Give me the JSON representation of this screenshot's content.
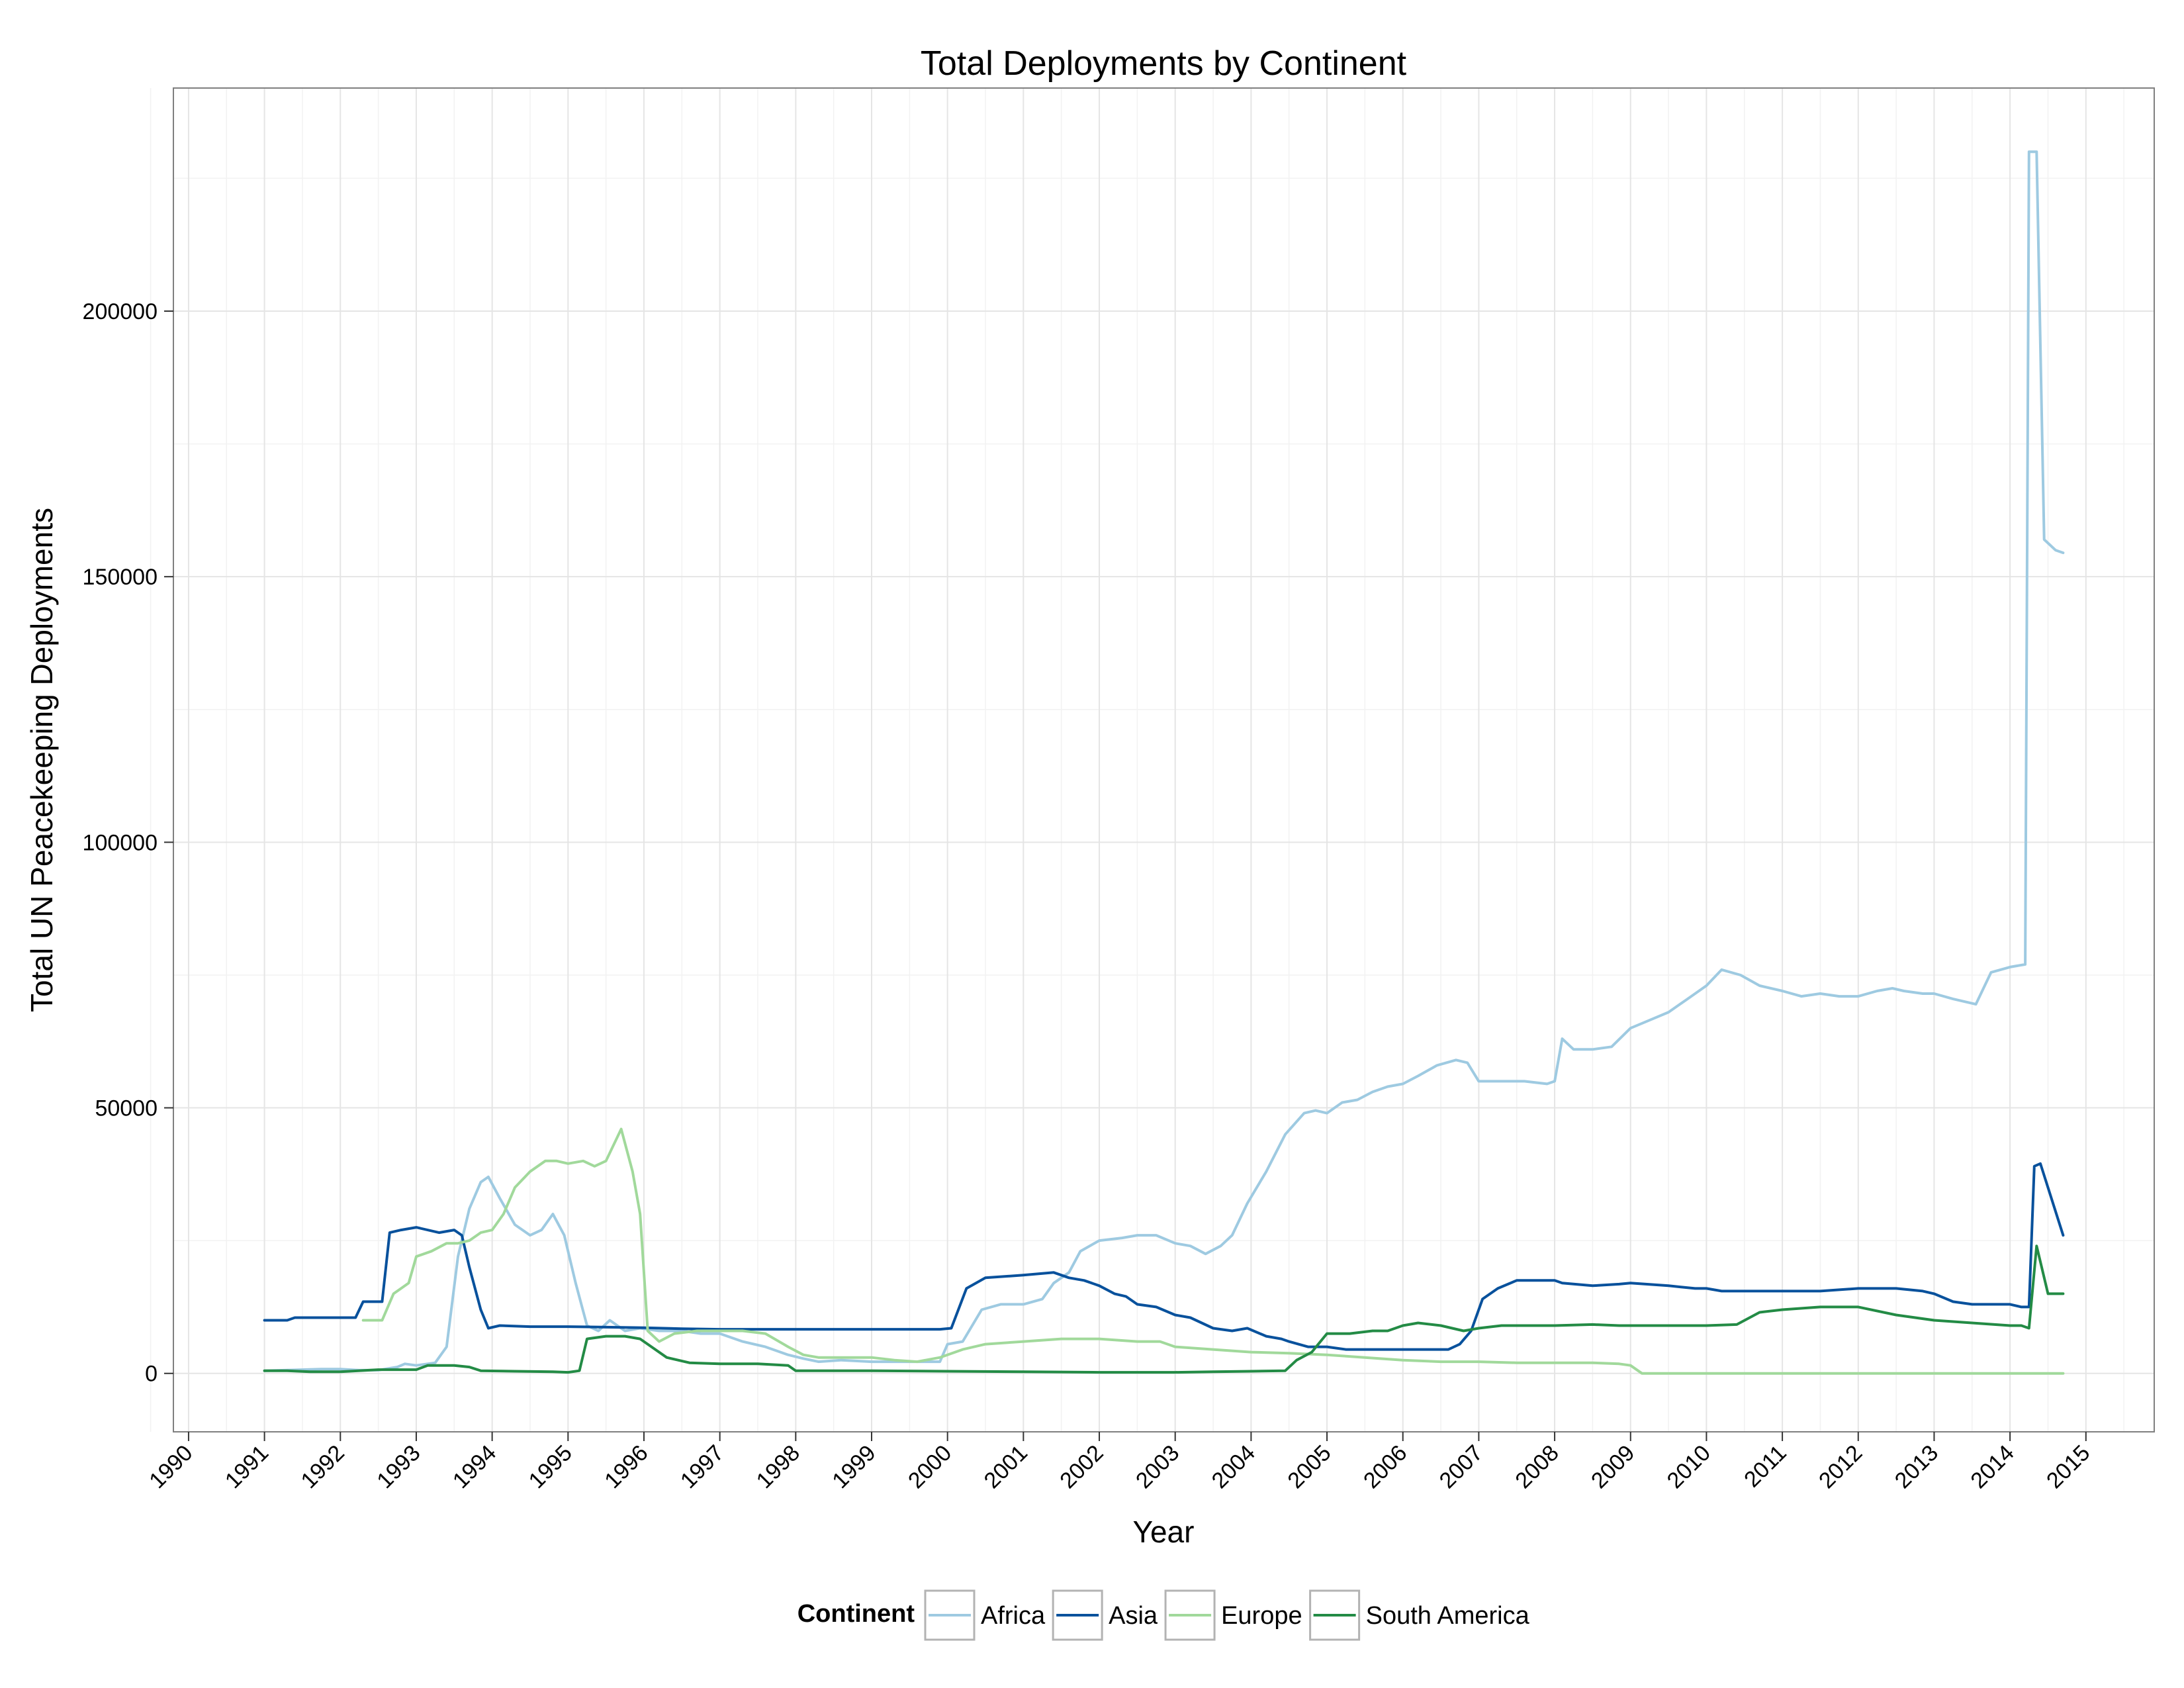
{
  "chart_data": {
    "type": "line",
    "title": "Total Deployments by Continent",
    "xlabel": "Year",
    "ylabel": "Total UN Peacekeeping Deployments",
    "xlim": [
      1989.8,
      2015.9
    ],
    "ylim": [
      -11000,
      242000
    ],
    "x_ticks": [
      1990,
      1991,
      1992,
      1993,
      1994,
      1995,
      1996,
      1997,
      1998,
      1999,
      2000,
      2001,
      2002,
      2003,
      2004,
      2005,
      2006,
      2007,
      2008,
      2009,
      2010,
      2011,
      2012,
      2013,
      2014,
      2015
    ],
    "x_tick_labels": [
      "1990",
      "1991",
      "1992",
      "1993",
      "1994",
      "1995",
      "1996",
      "1997",
      "1998",
      "1999",
      "2000",
      "2001",
      "2002",
      "2003",
      "2004",
      "2005",
      "2006",
      "2007",
      "2008",
      "2009",
      "2010",
      "2011",
      "2012",
      "2013",
      "2014",
      "2015"
    ],
    "y_ticks": [
      0,
      50000,
      100000,
      150000,
      200000
    ],
    "y_tick_labels": [
      "0",
      "50000",
      "100000",
      "150000",
      "200000"
    ],
    "grid": true,
    "legend": {
      "title": "Continent",
      "position": "bottom"
    },
    "series": [
      {
        "name": "Africa",
        "color": "#9ecae1",
        "x": [
          1991.0,
          1991.75,
          1992.0,
          1992.25,
          1992.5,
          1992.75,
          1992.85,
          1993.0,
          1993.25,
          1993.4,
          1993.55,
          1993.7,
          1993.85,
          1993.95,
          1994.1,
          1994.3,
          1994.5,
          1994.65,
          1994.8,
          1994.95,
          1995.1,
          1995.25,
          1995.4,
          1995.55,
          1995.75,
          1995.95,
          1996.2,
          1996.5,
          1996.75,
          1997.0,
          1997.3,
          1997.6,
          1997.9,
          1998.1,
          1998.3,
          1998.6,
          1999.0,
          1999.3,
          1999.6,
          1999.9,
          2000.0,
          2000.2,
          2000.45,
          2000.7,
          2001.0,
          2001.25,
          2001.4,
          2001.6,
          2001.75,
          2002.0,
          2002.3,
          2002.5,
          2002.75,
          2003.0,
          2003.2,
          2003.4,
          2003.6,
          2003.75,
          2003.95,
          2004.2,
          2004.45,
          2004.7,
          2004.85,
          2005.0,
          2005.2,
          2005.4,
          2005.6,
          2005.8,
          2006.0,
          2006.2,
          2006.45,
          2006.7,
          2006.85,
          2007.0,
          2007.3,
          2007.6,
          2007.9,
          2008.0,
          2008.1,
          2008.25,
          2008.5,
          2008.75,
          2009.0,
          2009.25,
          2009.5,
          2009.75,
          2010.0,
          2010.2,
          2010.45,
          2010.7,
          2011.0,
          2011.25,
          2011.5,
          2011.75,
          2012.0,
          2012.25,
          2012.45,
          2012.6,
          2012.85,
          2013.0,
          2013.25,
          2013.4,
          2013.55,
          2013.75,
          2014.0,
          2014.2,
          2014.25,
          2014.35,
          2014.45,
          2014.6,
          2014.7
        ],
        "y": [
          500,
          800,
          800,
          600,
          600,
          1200,
          1800,
          1500,
          2000,
          5000,
          22000,
          31000,
          36000,
          37000,
          33000,
          28000,
          26000,
          27000,
          30000,
          26000,
          17000,
          9000,
          8000,
          10000,
          8000,
          8500,
          8000,
          8000,
          7500,
          7500,
          6000,
          5000,
          3500,
          2800,
          2200,
          2500,
          2200,
          2200,
          2200,
          2200,
          5500,
          6000,
          12000,
          13000,
          13000,
          14000,
          17000,
          19000,
          23000,
          25000,
          25500,
          26000,
          26000,
          24500,
          24000,
          22500,
          24000,
          26000,
          32000,
          38000,
          45000,
          49000,
          49500,
          49000,
          51000,
          51500,
          53000,
          54000,
          54500,
          56000,
          58000,
          59000,
          58500,
          55000,
          55000,
          55000,
          54500,
          55000,
          63000,
          61000,
          61000,
          61500,
          65000,
          66500,
          68000,
          70500,
          73000,
          76000,
          75000,
          73000,
          72000,
          71000,
          71500,
          71000,
          71000,
          72000,
          72500,
          72000,
          71500,
          71500,
          70500,
          70000,
          69500,
          75500,
          76500,
          77000,
          230000,
          230000,
          157000,
          155000,
          154500
        ]
      },
      {
        "name": "Asia",
        "color": "#08519c",
        "x": [
          1991.0,
          1991.3,
          1991.4,
          1991.6,
          1991.8,
          1992.0,
          1992.2,
          1992.3,
          1992.55,
          1992.65,
          1992.8,
          1993.0,
          1993.3,
          1993.5,
          1993.6,
          1993.7,
          1993.85,
          1993.95,
          1994.1,
          1994.5,
          1995.0,
          1995.5,
          1996.0,
          1996.5,
          1997.0,
          1997.5,
          1998.0,
          1998.5,
          1999.0,
          1999.5,
          1999.9,
          2000.05,
          2000.25,
          2000.5,
          2001.0,
          2001.4,
          2001.6,
          2001.8,
          2002.0,
          2002.2,
          2002.35,
          2002.5,
          2002.75,
          2003.0,
          2003.2,
          2003.5,
          2003.75,
          2003.95,
          2004.2,
          2004.4,
          2004.5,
          2004.75,
          2005.0,
          2005.25,
          2005.5,
          2005.75,
          2006.0,
          2006.3,
          2006.6,
          2006.75,
          2006.9,
          2007.05,
          2007.25,
          2007.5,
          2007.75,
          2008.0,
          2008.1,
          2008.5,
          2008.85,
          2009.0,
          2009.5,
          2009.85,
          2010.0,
          2010.2,
          2010.45,
          2010.7,
          2011.0,
          2011.5,
          2012.0,
          2012.5,
          2012.85,
          2013.0,
          2013.25,
          2013.5,
          2013.75,
          2014.0,
          2014.15,
          2014.25,
          2014.32,
          2014.4,
          2014.7
        ],
        "y": [
          10000,
          10000,
          10500,
          10500,
          10500,
          10500,
          10500,
          13500,
          13500,
          26500,
          27000,
          27500,
          26500,
          27000,
          26000,
          20000,
          12000,
          8500,
          9000,
          8800,
          8800,
          8700,
          8600,
          8400,
          8300,
          8300,
          8300,
          8300,
          8300,
          8300,
          8300,
          8500,
          16000,
          18000,
          18500,
          19000,
          18000,
          17500,
          16500,
          15000,
          14500,
          13000,
          12500,
          11000,
          10500,
          8500,
          8000,
          8500,
          7000,
          6500,
          6000,
          5000,
          5000,
          4500,
          4500,
          4500,
          4500,
          4500,
          4500,
          5500,
          8000,
          14000,
          16000,
          17500,
          17500,
          17500,
          17000,
          16500,
          16800,
          17000,
          16500,
          16000,
          16000,
          15500,
          15500,
          15500,
          15500,
          15500,
          16000,
          16000,
          15500,
          15000,
          13500,
          13000,
          13000,
          13000,
          12500,
          12500,
          39000,
          39500,
          26000
        ],
        "note": "Asia"
      },
      {
        "name": "Europe",
        "color": "#a1d99b",
        "x": [
          1992.3,
          1992.55,
          1992.7,
          1992.8,
          1992.9,
          1993.0,
          1993.2,
          1993.4,
          1993.55,
          1993.7,
          1993.85,
          1994.0,
          1994.15,
          1994.3,
          1994.5,
          1994.7,
          1994.85,
          1995.0,
          1995.2,
          1995.35,
          1995.5,
          1995.6,
          1995.7,
          1995.85,
          1995.95,
          1996.05,
          1996.2,
          1996.4,
          1996.7,
          1997.0,
          1997.3,
          1997.6,
          1997.9,
          1998.1,
          1998.3,
          1998.6,
          1999.0,
          1999.3,
          1999.6,
          1999.9,
          2000.2,
          2000.5,
          2001.0,
          2001.5,
          2002.0,
          2002.5,
          2002.8,
          2003.0,
          2003.5,
          2004.0,
          2004.5,
          2005.0,
          2005.5,
          2006.0,
          2006.5,
          2007.0,
          2007.5,
          2008.0,
          2008.5,
          2008.85,
          2009.0,
          2009.15,
          2009.5,
          2010.0,
          2011.0,
          2012.0,
          2013.0,
          2014.0,
          2014.7
        ],
        "y": [
          10000,
          10000,
          15000,
          16000,
          17000,
          22000,
          23000,
          24500,
          24500,
          25000,
          26500,
          27000,
          30000,
          35000,
          38000,
          40000,
          40000,
          39500,
          40000,
          39000,
          40000,
          43000,
          46000,
          38000,
          30000,
          8000,
          6000,
          7500,
          8000,
          8000,
          8000,
          7500,
          5000,
          3500,
          3000,
          3000,
          3000,
          2500,
          2200,
          3000,
          4500,
          5500,
          6000,
          6500,
          6500,
          6000,
          6000,
          5000,
          4500,
          4000,
          3800,
          3500,
          3000,
          2500,
          2200,
          2200,
          2000,
          2000,
          2000,
          1800,
          1500,
          0,
          0,
          0,
          0,
          0,
          0,
          0,
          0
        ]
      },
      {
        "name": "South America",
        "color": "#238b45",
        "x": [
          1991.0,
          1991.3,
          1991.6,
          1992.0,
          1992.5,
          1993.0,
          1993.15,
          1993.5,
          1993.7,
          1993.85,
          1994.3,
          1994.8,
          1995.0,
          1995.15,
          1995.25,
          1995.5,
          1995.75,
          1995.95,
          1996.1,
          1996.3,
          1996.6,
          1997.0,
          1997.5,
          1997.9,
          1998.0,
          1998.5,
          1999.0,
          2000.0,
          2001.0,
          2002.0,
          2003.0,
          2003.5,
          2004.0,
          2004.45,
          2004.6,
          2004.8,
          2005.0,
          2005.3,
          2005.6,
          2005.8,
          2006.0,
          2006.2,
          2006.5,
          2006.8,
          2007.0,
          2007.3,
          2007.7,
          2008.0,
          2008.5,
          2008.85,
          2009.0,
          2009.5,
          2010.0,
          2010.4,
          2010.7,
          2011.0,
          2011.5,
          2011.8,
          2012.0,
          2012.5,
          2013.0,
          2013.5,
          2014.0,
          2014.15,
          2014.25,
          2014.35,
          2014.5,
          2014.7
        ],
        "y": [
          500,
          500,
          300,
          300,
          700,
          700,
          1500,
          1500,
          1200,
          500,
          400,
          300,
          200,
          500,
          6500,
          7000,
          7000,
          6500,
          5000,
          3000,
          2000,
          1800,
          1800,
          1500,
          500,
          500,
          500,
          400,
          300,
          200,
          200,
          300,
          400,
          500,
          2500,
          4000,
          7500,
          7500,
          8000,
          8000,
          9000,
          9500,
          9000,
          8000,
          8500,
          9000,
          9000,
          9000,
          9200,
          9000,
          9000,
          9000,
          9000,
          9200,
          11500,
          12000,
          12500,
          12500,
          12500,
          11000,
          10000,
          9500,
          9000,
          9000,
          8500,
          24000,
          15000,
          15000
        ]
      }
    ]
  }
}
